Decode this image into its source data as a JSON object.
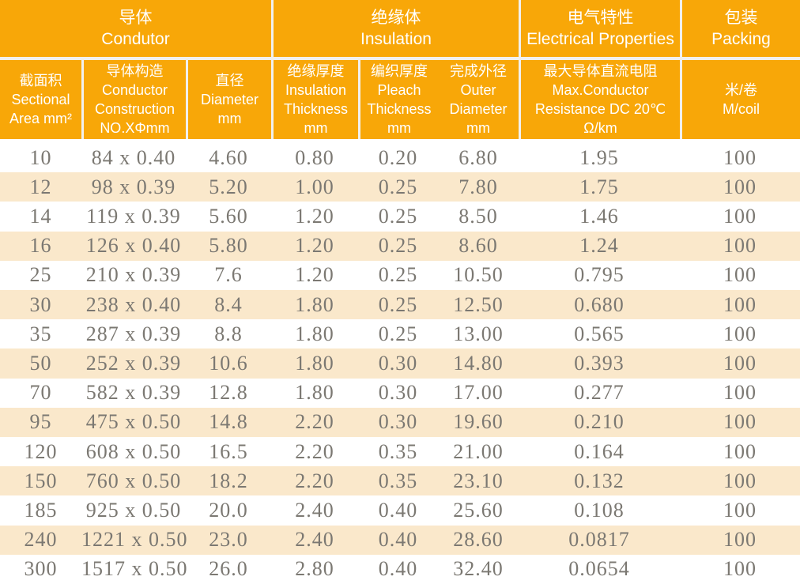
{
  "colors": {
    "header_bg": "#F8A708",
    "divider": "#F1F0EE",
    "stripe_bg": "#FAE8CB",
    "data_text": "#7B7872",
    "header_text": "#FFFFFF",
    "row_bg": "#FFFFFF"
  },
  "table": {
    "groups": [
      {
        "zh": "导体",
        "en": "Condutor"
      },
      {
        "zh": "绝缘体",
        "en": "Insulation"
      },
      {
        "zh": "电气特性",
        "en": "Electrical Properties"
      },
      {
        "zh": "包装",
        "en": "Packing"
      }
    ],
    "columns": [
      {
        "lines": [
          "截面积",
          "Sectional",
          "Area mm²"
        ]
      },
      {
        "lines": [
          "导体构造",
          "Conductor",
          "Construction",
          "NO.XΦmm"
        ]
      },
      {
        "lines": [
          "直径",
          "Diameter",
          "mm"
        ]
      },
      {
        "lines": [
          "绝缘厚度",
          "Insulation",
          "Thickness",
          "mm"
        ]
      },
      {
        "lines": [
          "编织厚度",
          "Pleach",
          "Thickness",
          "mm"
        ]
      },
      {
        "lines": [
          "完成外径",
          "Outer",
          "Diameter",
          "mm"
        ]
      },
      {
        "lines": [
          "最大导体直流电阻",
          "Max.Conductor",
          "Resistance DC 20℃",
          "Ω/km"
        ]
      },
      {
        "lines": [
          "米/卷",
          "M/coil"
        ]
      }
    ],
    "rows": [
      [
        "10",
        "84 x 0.40",
        "4.60",
        "0.80",
        "0.20",
        "6.80",
        "1.95",
        "100"
      ],
      [
        "12",
        "98 x 0.39",
        "5.20",
        "1.00",
        "0.25",
        "7.80",
        "1.75",
        "100"
      ],
      [
        "14",
        "119 x 0.39",
        "5.60",
        "1.20",
        "0.25",
        "8.50",
        "1.46",
        "100"
      ],
      [
        "16",
        "126 x 0.40",
        "5.80",
        "1.20",
        "0.25",
        "8.60",
        "1.24",
        "100"
      ],
      [
        "25",
        "210 x 0.39",
        "7.6",
        "1.20",
        "0.25",
        "10.50",
        "0.795",
        "100"
      ],
      [
        "30",
        "238 x 0.40",
        "8.4",
        "1.80",
        "0.25",
        "12.50",
        "0.680",
        "100"
      ],
      [
        "35",
        "287 x 0.39",
        "8.8",
        "1.80",
        "0.25",
        "13.00",
        "0.565",
        "100"
      ],
      [
        "50",
        "252 x 0.39",
        "10.6",
        "1.80",
        "0.30",
        "14.80",
        "0.393",
        "100"
      ],
      [
        "70",
        "582 x 0.39",
        "12.8",
        "1.80",
        "0.30",
        "17.00",
        "0.277",
        "100"
      ],
      [
        "95",
        "475 x 0.50",
        "14.8",
        "2.20",
        "0.30",
        "19.60",
        "0.210",
        "100"
      ],
      [
        "120",
        "608 x 0.50",
        "16.5",
        "2.20",
        "0.35",
        "21.00",
        "0.164",
        "100"
      ],
      [
        "150",
        "760 x 0.50",
        "18.2",
        "2.20",
        "0.35",
        "23.10",
        "0.132",
        "100"
      ],
      [
        "185",
        "925 x 0.50",
        "20.0",
        "2.40",
        "0.40",
        "25.60",
        "0.108",
        "100"
      ],
      [
        "240",
        "1221 x 0.50",
        "23.0",
        "2.40",
        "0.40",
        "28.60",
        "0.0817",
        "100"
      ],
      [
        "300",
        "1517 x 0.50",
        "26.0",
        "2.80",
        "0.40",
        "32.40",
        "0.0654",
        "100"
      ]
    ]
  }
}
